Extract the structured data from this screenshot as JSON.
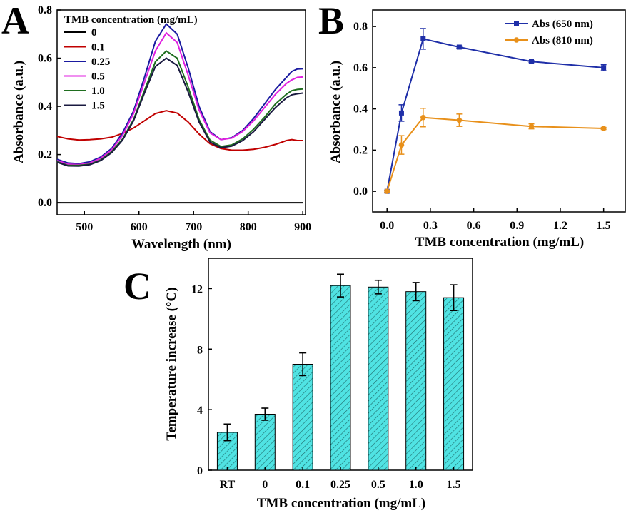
{
  "chart_data": [
    {
      "panel": "A",
      "type": "line",
      "xlabel": "Wavelength (nm)",
      "ylabel": "Absorbance (a.u.)",
      "xlim": [
        450,
        905
      ],
      "ylim": [
        -0.05,
        0.8
      ],
      "xticks": [
        500,
        600,
        700,
        800,
        900
      ],
      "yticks": [
        "0.0",
        "0.2",
        "0.4",
        "0.6",
        "0.8"
      ],
      "legend_title": "TMB concentration (mg/mL)",
      "legend_position": "top-left",
      "series": [
        {
          "name": "0",
          "color": "#000000",
          "x": [
            450,
            900
          ],
          "y": [
            0,
            0
          ]
        },
        {
          "name": "0.1",
          "color": "#c00000",
          "x": [
            450,
            470,
            490,
            510,
            530,
            550,
            570,
            590,
            610,
            630,
            650,
            670,
            690,
            710,
            730,
            750,
            770,
            790,
            810,
            830,
            850,
            870,
            880,
            890,
            900
          ],
          "y": [
            0.275,
            0.265,
            0.26,
            0.262,
            0.265,
            0.272,
            0.288,
            0.31,
            0.34,
            0.37,
            0.382,
            0.372,
            0.335,
            0.285,
            0.245,
            0.225,
            0.218,
            0.218,
            0.222,
            0.23,
            0.242,
            0.258,
            0.262,
            0.258,
            0.258
          ]
        },
        {
          "name": "0.25",
          "color": "#1a1aa0",
          "x": [
            450,
            470,
            490,
            510,
            530,
            550,
            570,
            590,
            610,
            630,
            650,
            670,
            690,
            710,
            730,
            750,
            770,
            790,
            810,
            830,
            850,
            870,
            880,
            890,
            900
          ],
          "y": [
            0.18,
            0.165,
            0.162,
            0.17,
            0.19,
            0.225,
            0.29,
            0.38,
            0.52,
            0.67,
            0.742,
            0.7,
            0.56,
            0.4,
            0.295,
            0.262,
            0.27,
            0.3,
            0.35,
            0.41,
            0.47,
            0.52,
            0.545,
            0.555,
            0.556
          ]
        },
        {
          "name": "0.5",
          "color": "#e020e0",
          "x": [
            450,
            470,
            490,
            510,
            530,
            550,
            570,
            590,
            610,
            630,
            650,
            670,
            690,
            710,
            730,
            750,
            770,
            790,
            810,
            830,
            850,
            870,
            880,
            890,
            900
          ],
          "y": [
            0.175,
            0.16,
            0.158,
            0.165,
            0.185,
            0.22,
            0.28,
            0.37,
            0.5,
            0.63,
            0.705,
            0.665,
            0.53,
            0.385,
            0.29,
            0.262,
            0.268,
            0.296,
            0.34,
            0.395,
            0.45,
            0.495,
            0.51,
            0.52,
            0.522
          ]
        },
        {
          "name": "1.0",
          "color": "#1f6e1f",
          "x": [
            450,
            470,
            490,
            510,
            530,
            550,
            570,
            590,
            610,
            630,
            650,
            670,
            690,
            710,
            730,
            750,
            770,
            790,
            810,
            830,
            850,
            870,
            880,
            890,
            900
          ],
          "y": [
            0.17,
            0.155,
            0.155,
            0.16,
            0.178,
            0.212,
            0.265,
            0.345,
            0.465,
            0.585,
            0.63,
            0.6,
            0.48,
            0.345,
            0.26,
            0.233,
            0.24,
            0.265,
            0.305,
            0.355,
            0.41,
            0.45,
            0.465,
            0.47,
            0.472
          ]
        },
        {
          "name": "1.5",
          "color": "#1a1a40",
          "x": [
            450,
            470,
            490,
            510,
            530,
            550,
            570,
            590,
            610,
            630,
            650,
            670,
            690,
            710,
            730,
            750,
            770,
            790,
            810,
            830,
            850,
            870,
            880,
            890,
            900
          ],
          "y": [
            0.168,
            0.153,
            0.152,
            0.158,
            0.175,
            0.208,
            0.26,
            0.34,
            0.455,
            0.565,
            0.6,
            0.57,
            0.46,
            0.335,
            0.252,
            0.228,
            0.235,
            0.258,
            0.295,
            0.345,
            0.395,
            0.435,
            0.448,
            0.452,
            0.455
          ]
        }
      ]
    },
    {
      "panel": "B",
      "type": "line",
      "xlabel": "TMB concentration (mg/mL)",
      "ylabel": "Absorbance (a.u.)",
      "xlim": [
        -0.1,
        1.65
      ],
      "ylim": [
        -0.1,
        0.88
      ],
      "xticks": [
        "0.0",
        "0.3",
        "0.6",
        "0.9",
        "1.2",
        "1.5"
      ],
      "yticks": [
        "0.0",
        "0.2",
        "0.4",
        "0.6",
        "0.8"
      ],
      "legend_position": "top-right",
      "x": [
        0,
        0.1,
        0.25,
        0.5,
        1.0,
        1.5
      ],
      "series": [
        {
          "name": "Abs (650 nm)",
          "color": "#1f2fa8",
          "marker": "square",
          "values": [
            0.0,
            0.38,
            0.74,
            0.7,
            0.63,
            0.6
          ],
          "errors": [
            0.005,
            0.04,
            0.05,
            0.005,
            0.005,
            0.015
          ]
        },
        {
          "name": "Abs (810 nm)",
          "color": "#e8901a",
          "marker": "circle",
          "values": [
            0.0,
            0.225,
            0.358,
            0.345,
            0.315,
            0.305
          ],
          "errors": [
            0.005,
            0.045,
            0.045,
            0.03,
            0.012,
            0.005
          ]
        }
      ]
    },
    {
      "panel": "C",
      "type": "bar",
      "xlabel": "TMB concentration (mg/mL)",
      "ylabel": "Temperature increase (°C)",
      "ylim": [
        0,
        14
      ],
      "yticks": [
        "0",
        "4",
        "8",
        "12"
      ],
      "categories": [
        "RT",
        "0",
        "0.1",
        "0.25",
        "0.5",
        "1.0",
        "1.5"
      ],
      "values": [
        2.5,
        3.7,
        7.0,
        12.2,
        12.1,
        11.8,
        11.4
      ],
      "errors": [
        0.55,
        0.4,
        0.75,
        0.75,
        0.45,
        0.6,
        0.85
      ],
      "bar_color": "#4ee0e0",
      "hatch": "diagonal"
    }
  ],
  "panel_labels": {
    "a": "A",
    "b": "B",
    "c": "C"
  }
}
